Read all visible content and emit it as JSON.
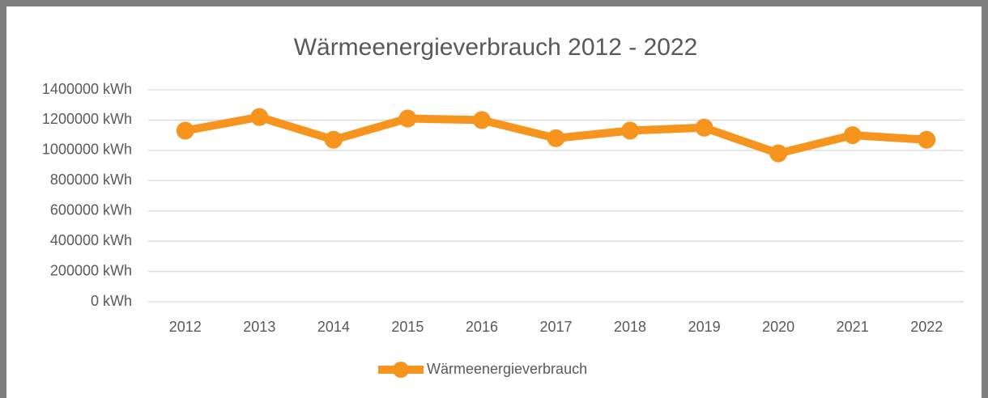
{
  "chart_data": {
    "type": "line",
    "title": "Wärmeenergieverbrauch 2012 - 2022",
    "categories": [
      "2012",
      "2013",
      "2014",
      "2015",
      "2016",
      "2017",
      "2018",
      "2019",
      "2020",
      "2021",
      "2022"
    ],
    "series": [
      {
        "name": "Wärmeenergieverbrauch",
        "color": "#f7941d",
        "values": [
          1130000,
          1220000,
          1070000,
          1210000,
          1200000,
          1080000,
          1130000,
          1150000,
          980000,
          1100000,
          1070000
        ]
      }
    ],
    "ylim": [
      0,
      1400000
    ],
    "yticks": [
      {
        "value": 0,
        "label": "0 kWh"
      },
      {
        "value": 200000,
        "label": "200000 kWh"
      },
      {
        "value": 400000,
        "label": "400000 kWh"
      },
      {
        "value": 600000,
        "label": "600000 kWh"
      },
      {
        "value": 800000,
        "label": "800000 kWh"
      },
      {
        "value": 1000000,
        "label": "1000000 kWh"
      },
      {
        "value": 1200000,
        "label": "1200000 kWh"
      },
      {
        "value": 1400000,
        "label": "1400000 kWh"
      }
    ],
    "grid": true,
    "legend": "bottom"
  }
}
